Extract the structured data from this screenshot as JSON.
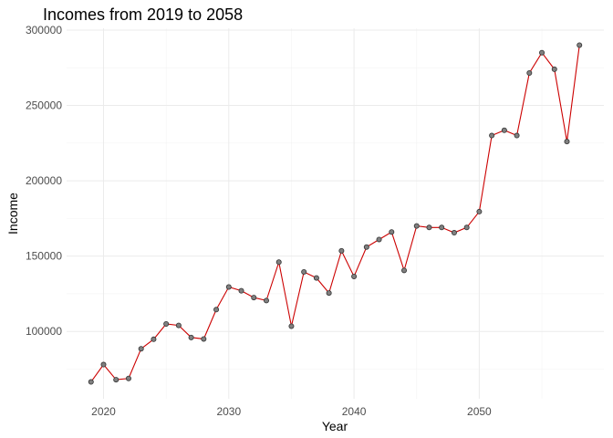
{
  "chart_data": {
    "type": "line",
    "title": "Incomes from 2019 to 2058",
    "xlabel": "Year",
    "ylabel": "Income",
    "x": [
      2019,
      2020,
      2021,
      2022,
      2023,
      2024,
      2025,
      2026,
      2027,
      2028,
      2029,
      2030,
      2031,
      2032,
      2033,
      2034,
      2035,
      2036,
      2037,
      2038,
      2039,
      2040,
      2041,
      2042,
      2043,
      2044,
      2045,
      2046,
      2047,
      2048,
      2049,
      2050,
      2051,
      2052,
      2053,
      2054,
      2055,
      2056,
      2057,
      2058
    ],
    "series": [
      {
        "values": [
          66500,
          78000,
          68000,
          68800,
          88500,
          94800,
          105000,
          104000,
          96000,
          95000,
          114500,
          129500,
          127000,
          122500,
          120500,
          146000,
          103500,
          139500,
          135500,
          125500,
          153500,
          136500,
          156000,
          161000,
          166000,
          140500,
          170000,
          169000,
          169000,
          165500,
          169000,
          179500,
          230000,
          233500,
          230000,
          271500,
          285000,
          274000,
          226000,
          290000
        ]
      }
    ],
    "xticks": [
      2020,
      2030,
      2040,
      2050
    ],
    "yticks": [
      100000,
      150000,
      200000,
      250000,
      300000
    ],
    "xlim": [
      2017.05,
      2059.95
    ],
    "ylim": [
      55325,
      301175
    ],
    "grid": true,
    "line_color": "#cc0000",
    "point_fill": "#808080",
    "point_stroke": "#333333"
  }
}
